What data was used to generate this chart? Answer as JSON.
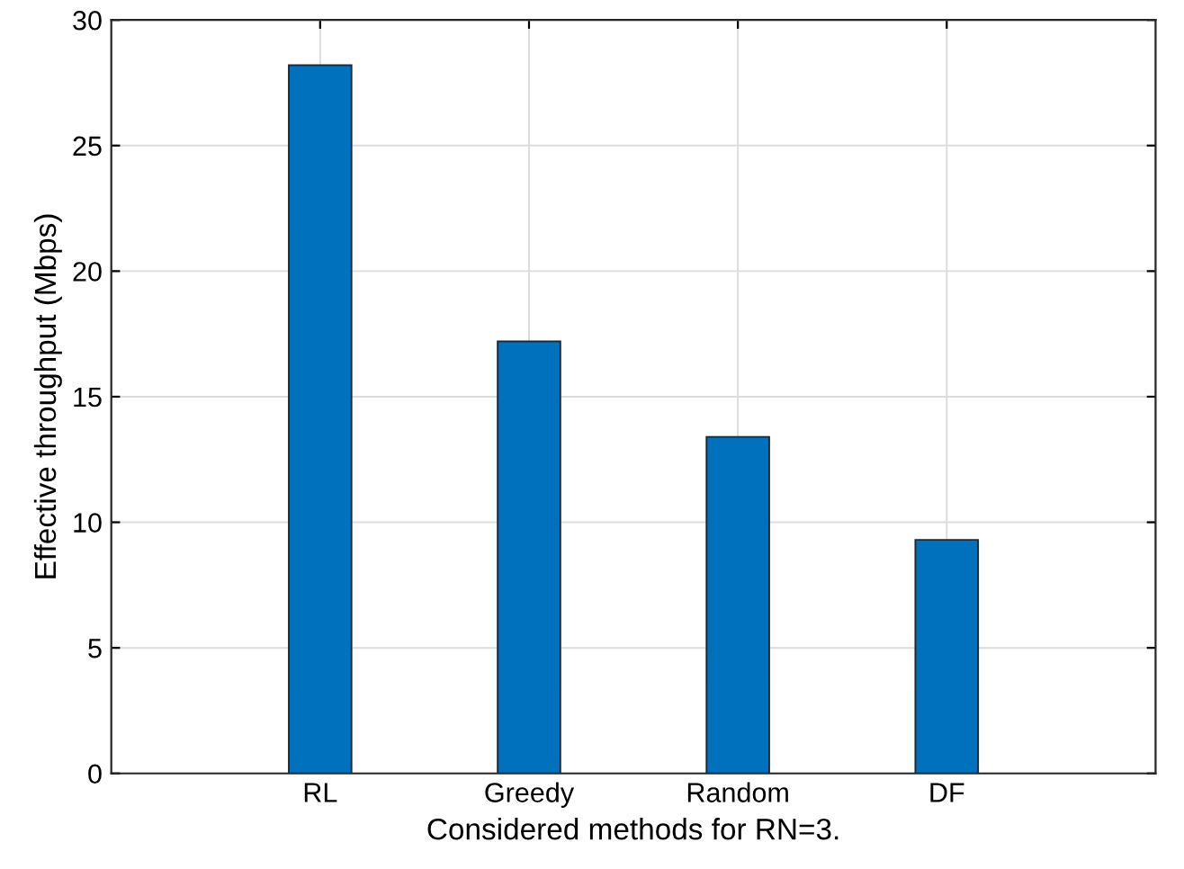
{
  "chart_data": {
    "type": "bar",
    "xlabel": "Considered methods for RN=3.",
    "ylabel": "Effective throughput (Mbps)",
    "categories": [
      "RL",
      "Greedy",
      "Random",
      "DF"
    ],
    "values": [
      28.2,
      17.2,
      13.4,
      9.3
    ],
    "color": "#0072bd",
    "ylim": [
      0,
      30
    ],
    "yticks": [
      0,
      5,
      10,
      15,
      20,
      25,
      30
    ],
    "grid": true
  }
}
